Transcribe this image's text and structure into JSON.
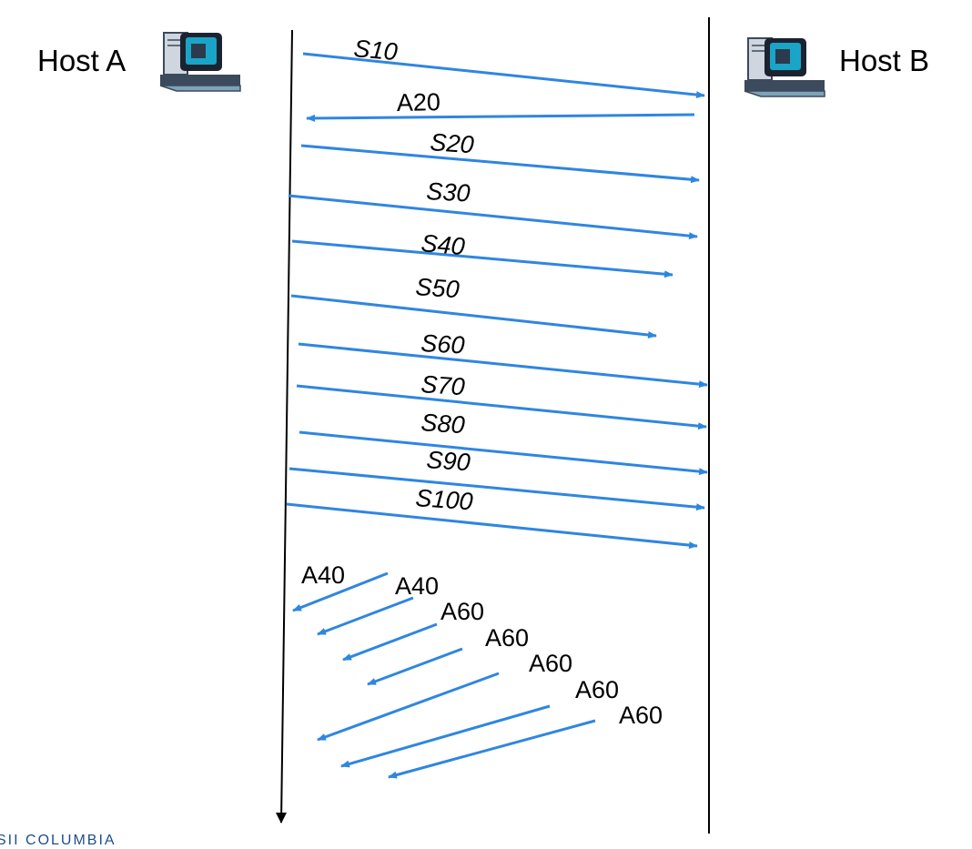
{
  "hosts": {
    "a": {
      "label": "Host A"
    },
    "b": {
      "label": "Host B"
    }
  },
  "colors": {
    "arrow": "#2f86e0",
    "timeline": "#000000",
    "footer": "#1f4e8c"
  },
  "icons": {
    "host_a": "computer-icon",
    "host_b": "computer-icon"
  },
  "messages": [
    {
      "label": "S10",
      "type": "segment",
      "direction": "A-to-B"
    },
    {
      "label": "A20",
      "type": "ack",
      "direction": "B-to-A"
    },
    {
      "label": "S20",
      "type": "segment",
      "direction": "A-to-B"
    },
    {
      "label": "S30",
      "type": "segment",
      "direction": "A-to-B"
    },
    {
      "label": "S40",
      "type": "segment",
      "direction": "A-to-B",
      "lost": true
    },
    {
      "label": "S50",
      "type": "segment",
      "direction": "A-to-B",
      "lost": true
    },
    {
      "label": "S60",
      "type": "segment",
      "direction": "A-to-B"
    },
    {
      "label": "S70",
      "type": "segment",
      "direction": "A-to-B"
    },
    {
      "label": "S80",
      "type": "segment",
      "direction": "A-to-B"
    },
    {
      "label": "S90",
      "type": "segment",
      "direction": "A-to-B"
    },
    {
      "label": "S100",
      "type": "segment",
      "direction": "A-to-B"
    },
    {
      "label": "A40",
      "type": "ack",
      "direction": "B-to-A"
    },
    {
      "label": "A40",
      "type": "ack",
      "direction": "B-to-A"
    },
    {
      "label": "A60",
      "type": "ack",
      "direction": "B-to-A"
    },
    {
      "label": "A60",
      "type": "ack",
      "direction": "B-to-A"
    },
    {
      "label": "A60",
      "type": "ack",
      "direction": "B-to-A"
    },
    {
      "label": "A60",
      "type": "ack",
      "direction": "B-to-A"
    },
    {
      "label": "A60",
      "type": "ack",
      "direction": "B-to-A"
    }
  ],
  "footer": {
    "text": "SII COLUMBIA"
  }
}
